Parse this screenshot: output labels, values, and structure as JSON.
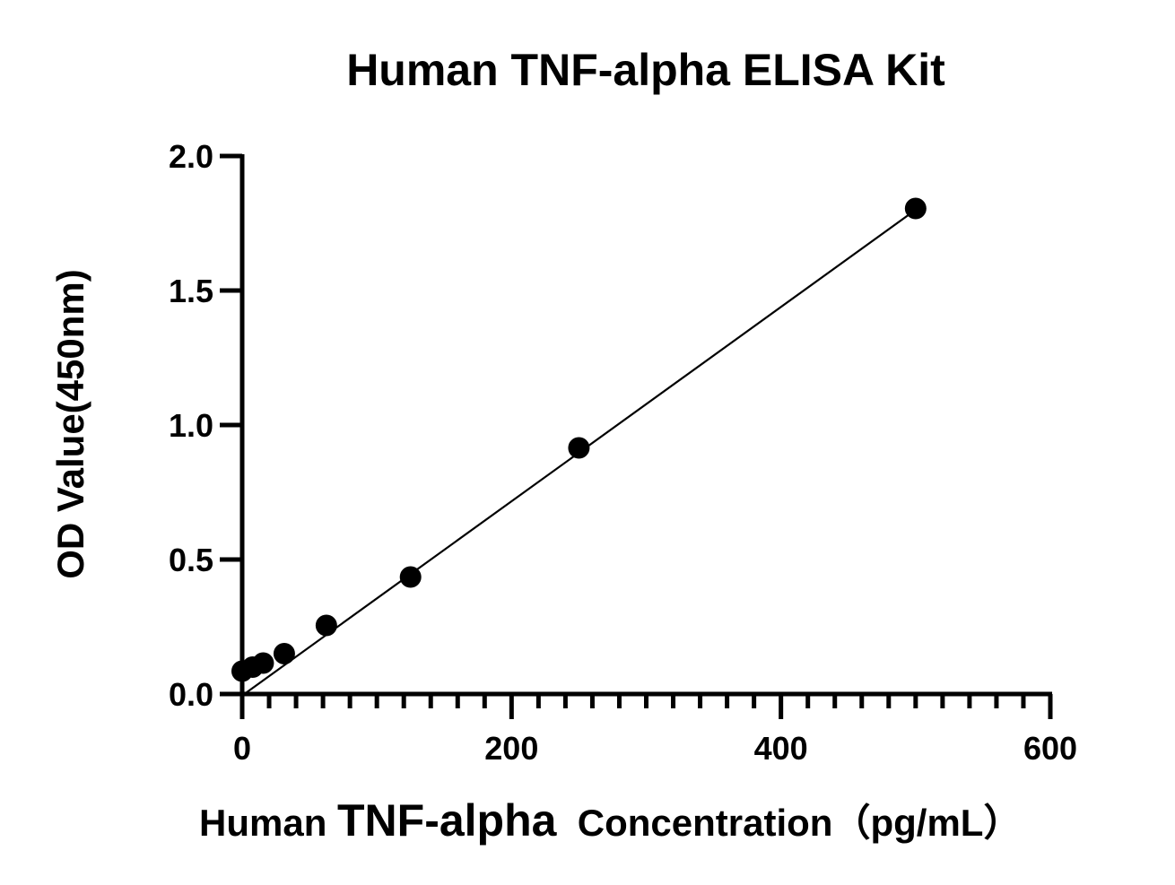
{
  "chart_data": {
    "type": "scatter",
    "title": "Human TNF-alpha ELISA Kit",
    "ylabel": "OD Value(450nm)",
    "xlabel_parts": [
      "Human ",
      "TNF-alpha",
      "  Concentration",
      "（pg/mL）"
    ],
    "xlim": [
      0,
      600
    ],
    "ylim": [
      0,
      2.0
    ],
    "x_ticks": [
      0,
      200,
      400,
      600
    ],
    "x_tick_labels": [
      "0",
      "200",
      "400",
      "600"
    ],
    "x_minor_step": 20,
    "y_ticks": [
      0,
      0.5,
      1.0,
      1.5,
      2.0
    ],
    "y_tick_labels": [
      "0.0",
      "0.5",
      "1.0",
      "1.5",
      "2.0"
    ],
    "grid": false,
    "series": [
      {
        "x": [
          0,
          7.8,
          15.6,
          31.25,
          62.5,
          125,
          250,
          500
        ],
        "y": [
          0.085,
          0.1,
          0.115,
          0.15,
          0.255,
          0.435,
          0.915,
          1.805
        ]
      }
    ],
    "fit_line": {
      "x": [
        3,
        500
      ],
      "y": [
        0.005,
        1.8
      ]
    },
    "colors": {
      "points": "#000000",
      "line": "#000000",
      "axes": "#000000"
    }
  }
}
